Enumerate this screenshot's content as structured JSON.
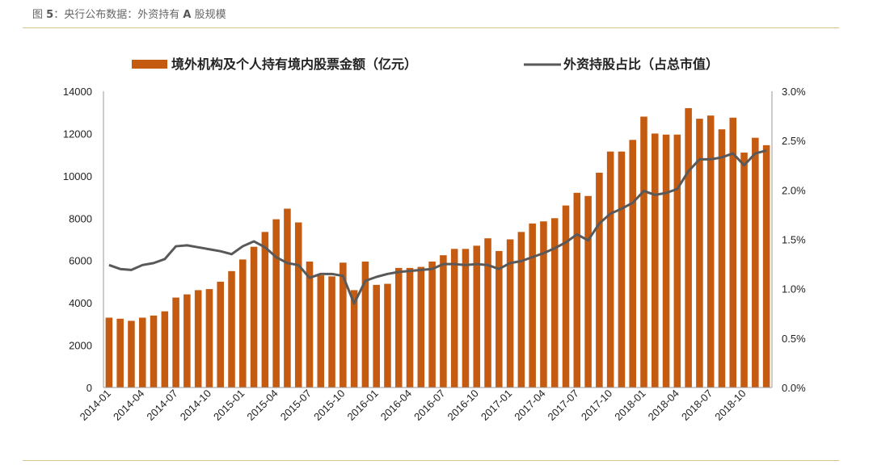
{
  "caption": {
    "prefix": "图",
    "number": "5",
    "text": "：央行公布数据：外资持有",
    "bold_letter": "A",
    "suffix": "股规模"
  },
  "colors": {
    "bar": "#c55a11",
    "line": "#595959",
    "rule": "#d8c48f"
  },
  "chart_data": {
    "type": "bar",
    "title": "",
    "xlabel": "",
    "ylabel": "",
    "ylim": [
      0,
      14000
    ],
    "y2lim": [
      0,
      3.0
    ],
    "yticks": [
      "0",
      "2000",
      "4000",
      "6000",
      "8000",
      "10000",
      "12000",
      "14000"
    ],
    "y2ticks": [
      "0.0%",
      "0.5%",
      "1.0%",
      "1.5%",
      "2.0%",
      "2.5%",
      "3.0%"
    ],
    "legend_position": "top",
    "grid": false,
    "x_tick_labels": [
      "2014-01",
      "2014-04",
      "2014-07",
      "2014-10",
      "2015-01",
      "2015-04",
      "2015-07",
      "2015-10",
      "2016-01",
      "2016-04",
      "2016-07",
      "2016-10",
      "2017-01",
      "2017-04",
      "2017-07",
      "2017-10",
      "2018-01",
      "2018-04",
      "2018-07",
      "2018-10"
    ],
    "categories": [
      "2014-01",
      "2014-02",
      "2014-03",
      "2014-04",
      "2014-05",
      "2014-06",
      "2014-07",
      "2014-08",
      "2014-09",
      "2014-10",
      "2014-11",
      "2014-12",
      "2015-01",
      "2015-02",
      "2015-03",
      "2015-04",
      "2015-05",
      "2015-06",
      "2015-07",
      "2015-08",
      "2015-09",
      "2015-10",
      "2015-11",
      "2015-12",
      "2016-01",
      "2016-02",
      "2016-03",
      "2016-04",
      "2016-05",
      "2016-06",
      "2016-07",
      "2016-08",
      "2016-09",
      "2016-10",
      "2016-11",
      "2016-12",
      "2017-01",
      "2017-02",
      "2017-03",
      "2017-04",
      "2017-05",
      "2017-06",
      "2017-07",
      "2017-08",
      "2017-09",
      "2017-10",
      "2017-11",
      "2017-12",
      "2018-01",
      "2018-02",
      "2018-03",
      "2018-04",
      "2018-05",
      "2018-06",
      "2018-07",
      "2018-08",
      "2018-09",
      "2018-10",
      "2018-11",
      "2018-12"
    ],
    "series": [
      {
        "name": "境外机构及个人持有境内股票金额（亿元）",
        "type": "bar",
        "axis": "left",
        "values": [
          3300,
          3250,
          3150,
          3300,
          3400,
          3600,
          4250,
          4400,
          4600,
          4650,
          5000,
          5500,
          6050,
          6650,
          7350,
          7950,
          8450,
          7800,
          5950,
          5300,
          5250,
          5900,
          4600,
          5950,
          4850,
          4900,
          5650,
          5650,
          5700,
          5950,
          6250,
          6550,
          6550,
          6700,
          7050,
          6450,
          7000,
          7350,
          7750,
          7850,
          8000,
          8600,
          9200,
          9050,
          10150,
          11150,
          11150,
          11700,
          12800,
          12000,
          11950,
          11950,
          13200,
          12700,
          12850,
          12200,
          12750,
          11100,
          11800,
          11450
        ]
      },
      {
        "name": "外资持股占比（占总市值）",
        "type": "line",
        "axis": "right",
        "values": [
          1.24,
          1.2,
          1.19,
          1.24,
          1.26,
          1.3,
          1.43,
          1.44,
          1.42,
          1.4,
          1.38,
          1.35,
          1.43,
          1.48,
          1.42,
          1.32,
          1.26,
          1.24,
          1.11,
          1.15,
          1.15,
          1.13,
          0.85,
          1.08,
          1.12,
          1.15,
          1.17,
          1.18,
          1.19,
          1.2,
          1.25,
          1.25,
          1.24,
          1.25,
          1.24,
          1.2,
          1.26,
          1.28,
          1.32,
          1.36,
          1.41,
          1.47,
          1.55,
          1.49,
          1.66,
          1.76,
          1.81,
          1.87,
          1.99,
          1.95,
          1.97,
          2.01,
          2.19,
          2.31,
          2.31,
          2.33,
          2.37,
          2.25,
          2.37,
          2.4
        ]
      }
    ]
  }
}
